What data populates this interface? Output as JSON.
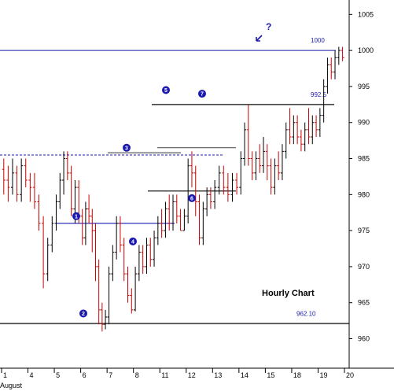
{
  "chart_data": {
    "type": "ohlc",
    "title": "Hourly Chart",
    "xlabel": "August",
    "ylabel": "",
    "ylim": [
      957,
      1007
    ],
    "y_ticks": [
      960,
      965,
      970,
      975,
      980,
      985,
      990,
      995,
      1000,
      1005
    ],
    "x_ticks": [
      "1",
      "4",
      "5",
      "6",
      "7",
      "8",
      "11",
      "12",
      "13",
      "14",
      "15",
      "18",
      "19",
      "20"
    ],
    "x_axis_month": "August",
    "colors": {
      "up": "#000000",
      "down": "#cc0000",
      "level_line": "#1a1ab0",
      "support_line": "#555555",
      "marker": "#1a1ab0"
    },
    "levels": [
      {
        "label": "1000",
        "value": 1000.0,
        "color": "#1a1ab0"
      },
      {
        "label": "992.5",
        "value": 992.5,
        "color": "#444444"
      },
      {
        "label": "962.10",
        "value": 962.1,
        "color": "#444444"
      }
    ],
    "markers": [
      {
        "label": "1",
        "near": 977
      },
      {
        "label": "2",
        "near": 963.5
      },
      {
        "label": "3",
        "near": 986.5
      },
      {
        "label": "4",
        "near": 973.5
      },
      {
        "label": "5",
        "near": 994.5
      },
      {
        "label": "6",
        "near": 979.5
      },
      {
        "label": "7",
        "near": 994
      }
    ],
    "question_mark": "?",
    "bars": [
      [
        1,
        983.5,
        982,
        985,
        980,
        0
      ],
      [
        1,
        982,
        981,
        984,
        979,
        0
      ],
      [
        1,
        981,
        983,
        985,
        980,
        1
      ],
      [
        1,
        983,
        980,
        984,
        979,
        0
      ],
      [
        1,
        980,
        984,
        985,
        979,
        1
      ],
      [
        1,
        984,
        982,
        985,
        981,
        0
      ],
      [
        2,
        982,
        981,
        983,
        979,
        0
      ],
      [
        2,
        981,
        979,
        983,
        978,
        0
      ],
      [
        2,
        979,
        976,
        980,
        975,
        0
      ],
      [
        2,
        976,
        969,
        977,
        967,
        0
      ],
      [
        2,
        969,
        973,
        974,
        968,
        1
      ],
      [
        2,
        973,
        976,
        977,
        972,
        1
      ],
      [
        3,
        976,
        979,
        980,
        975,
        1
      ],
      [
        3,
        979,
        982,
        983,
        978,
        1
      ],
      [
        3,
        982,
        985,
        986,
        980,
        1
      ],
      [
        3,
        985,
        983,
        986,
        982,
        0
      ],
      [
        3,
        983,
        978,
        984,
        977,
        0
      ],
      [
        3,
        978,
        981,
        982,
        976,
        1
      ],
      [
        3,
        981,
        977,
        982,
        976,
        0
      ],
      [
        4,
        977,
        974,
        978,
        973,
        0
      ],
      [
        4,
        974,
        978,
        979,
        973,
        1
      ],
      [
        4,
        978,
        977,
        980,
        976,
        0
      ],
      [
        4,
        977,
        975,
        978,
        972,
        0
      ],
      [
        4,
        975,
        970,
        976,
        968,
        0
      ],
      [
        4,
        970,
        964,
        971,
        962,
        0
      ],
      [
        4,
        964,
        962,
        965,
        961,
        0
      ],
      [
        4,
        962,
        963,
        964,
        961.3,
        1
      ],
      [
        5,
        963,
        969,
        970,
        962,
        1
      ],
      [
        5,
        969,
        972,
        973,
        968,
        1
      ],
      [
        5,
        972,
        976,
        977,
        971,
        1
      ],
      [
        5,
        976,
        973,
        977,
        972,
        0
      ],
      [
        5,
        973,
        969,
        974,
        968,
        0
      ],
      [
        5,
        969,
        966,
        970,
        965,
        0
      ],
      [
        5,
        966,
        964,
        967,
        963.5,
        0
      ],
      [
        6,
        964,
        969,
        970,
        963.8,
        1
      ],
      [
        6,
        969,
        972,
        973,
        968,
        1
      ],
      [
        6,
        972,
        970,
        973,
        969,
        0
      ],
      [
        6,
        970,
        973,
        974,
        969,
        1
      ],
      [
        6,
        973,
        971,
        974,
        970,
        0
      ],
      [
        6,
        971,
        974,
        975,
        970,
        1
      ],
      [
        6,
        974,
        976,
        977,
        973,
        1
      ],
      [
        7,
        976,
        975,
        978,
        974,
        0
      ],
      [
        7,
        975,
        978,
        979,
        974,
        1
      ],
      [
        7,
        978,
        976,
        980,
        975,
        0
      ],
      [
        7,
        976,
        979,
        980,
        975,
        1
      ],
      [
        7,
        979,
        977,
        980,
        976,
        0
      ],
      [
        7,
        977,
        975,
        978,
        975,
        0
      ],
      [
        7,
        975,
        977,
        978,
        975,
        1
      ],
      [
        8,
        977,
        984,
        985,
        976,
        1
      ],
      [
        8,
        984,
        983,
        986,
        981,
        0
      ],
      [
        8,
        983,
        979,
        984,
        977,
        0
      ],
      [
        8,
        979,
        974,
        980,
        973,
        0
      ],
      [
        8,
        974,
        978,
        979,
        973,
        1
      ],
      [
        8,
        978,
        980,
        981,
        977,
        1
      ],
      [
        8,
        980,
        979,
        981,
        978,
        0
      ],
      [
        9,
        979,
        981,
        982,
        978,
        1
      ],
      [
        9,
        981,
        983,
        984,
        980,
        1
      ],
      [
        9,
        983,
        981,
        984,
        980,
        0
      ],
      [
        9,
        981,
        980,
        983,
        979,
        0
      ],
      [
        9,
        980,
        982,
        983,
        979,
        1
      ],
      [
        9,
        982,
        981,
        983,
        980,
        0
      ],
      [
        10,
        981,
        985,
        986,
        980,
        1
      ],
      [
        10,
        985,
        989,
        990,
        984,
        1
      ],
      [
        10,
        989,
        985,
        992.5,
        984,
        0
      ],
      [
        10,
        985,
        983,
        986,
        982,
        0
      ],
      [
        10,
        983,
        985,
        986,
        982,
        1
      ],
      [
        10,
        985,
        984,
        987,
        983,
        0
      ],
      [
        10,
        984,
        986,
        988,
        983,
        1
      ],
      [
        11,
        986,
        984,
        987,
        982,
        0
      ],
      [
        11,
        984,
        981,
        985,
        980,
        0
      ],
      [
        11,
        981,
        984,
        985,
        980,
        1
      ],
      [
        11,
        984,
        983,
        986,
        982,
        0
      ],
      [
        11,
        983,
        986,
        987,
        982,
        1
      ],
      [
        11,
        986,
        989,
        990,
        985,
        1
      ],
      [
        11,
        989,
        988,
        992,
        987,
        0
      ],
      [
        12,
        988,
        990,
        991,
        987,
        1
      ],
      [
        12,
        990,
        988,
        991,
        987,
        0
      ],
      [
        12,
        988,
        987,
        989,
        986,
        0
      ],
      [
        12,
        987,
        989,
        990,
        986,
        1
      ],
      [
        12,
        989,
        988,
        992,
        987,
        0
      ],
      [
        12,
        988,
        990,
        991,
        987,
        1
      ],
      [
        12,
        990,
        989,
        991,
        988,
        0
      ],
      [
        13,
        989,
        991,
        992,
        988,
        1
      ],
      [
        13,
        991,
        995,
        996,
        990,
        1
      ],
      [
        13,
        995,
        998,
        999,
        994,
        1
      ],
      [
        13,
        998,
        997,
        999,
        996,
        0
      ],
      [
        13,
        997,
        999,
        1000,
        996,
        1
      ],
      [
        13,
        999,
        1000,
        1000.5,
        998,
        1
      ],
      [
        13,
        1000,
        999,
        1000.5,
        998.5,
        0
      ]
    ]
  }
}
